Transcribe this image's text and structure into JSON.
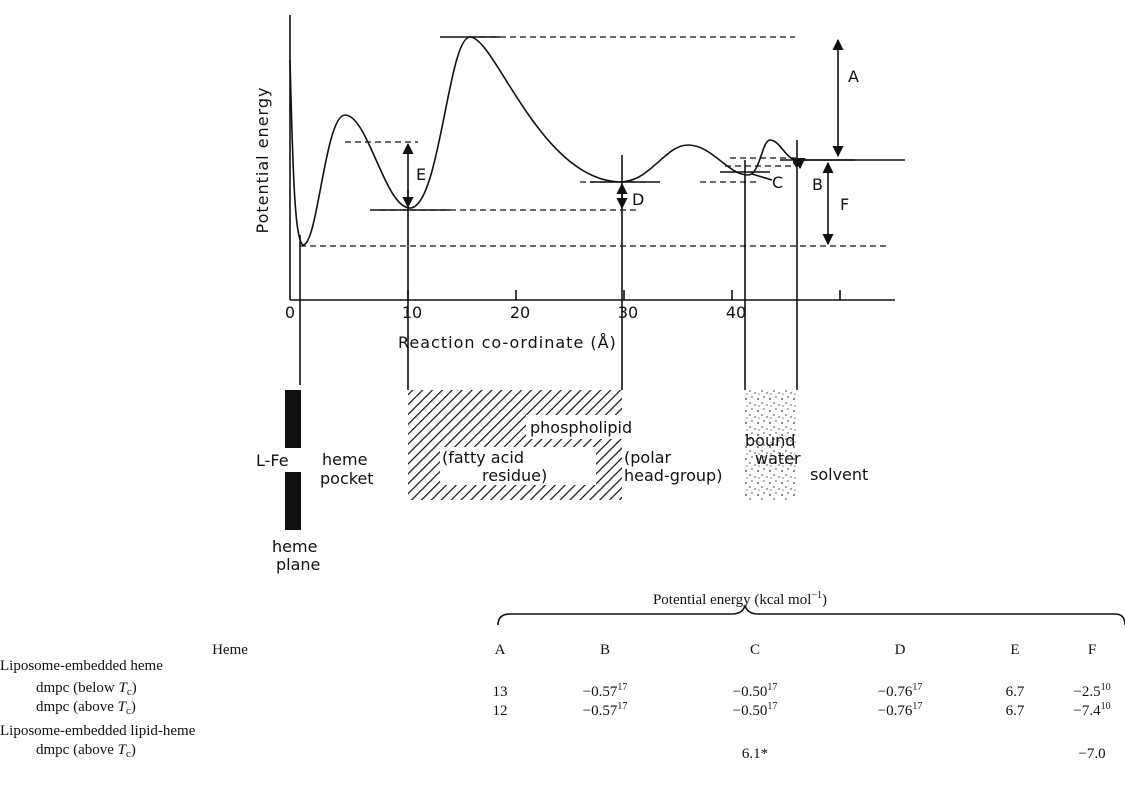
{
  "diagram": {
    "y_axis_label": "Potential energy",
    "x_axis_label": "Reaction co-ordinate (Å)",
    "x_ticks": [
      "0",
      "10",
      "20",
      "30",
      "40"
    ],
    "barrier_labels": [
      "A",
      "B",
      "C",
      "D",
      "E",
      "F"
    ],
    "regions": {
      "l_fe": "L-Fe",
      "heme_plane": [
        "heme",
        "plane"
      ],
      "heme_pocket": [
        "heme",
        "pocket"
      ],
      "phospholipid": "phospholipid",
      "fatty_acid": [
        "(fatty acid",
        "residue)"
      ],
      "polar_head": [
        "(polar",
        "head-group)"
      ],
      "bound_water": [
        "bound",
        "water"
      ],
      "solvent": "solvent"
    }
  },
  "table": {
    "title": {
      "text": "Potential energy (kcal mol",
      "sup": "−1",
      "end": ")"
    },
    "header": [
      "Heme",
      "A",
      "B",
      "C",
      "D",
      "E",
      "F"
    ],
    "groups": [
      {
        "label": "Liposome-embedded heme",
        "rows": [
          {
            "label": {
              "pre": "dmpc (below ",
              "var": "T",
              "sub": "c",
              "post": ")"
            },
            "cells": [
              {
                "value": "13"
              },
              {
                "value": "−0.57",
                "ref": "17"
              },
              {
                "value": "−0.50",
                "ref": "17"
              },
              {
                "value": "−0.76",
                "ref": "17"
              },
              {
                "value": "6.7"
              },
              {
                "value": "−2.5",
                "ref": "10"
              }
            ]
          },
          {
            "label": {
              "pre": "dmpc (above ",
              "var": "T",
              "sub": "c",
              "post": ")"
            },
            "cells": [
              {
                "value": "12"
              },
              {
                "value": "−0.57",
                "ref": "17"
              },
              {
                "value": "−0.50",
                "ref": "17"
              },
              {
                "value": "−0.76",
                "ref": "17"
              },
              {
                "value": "6.7"
              },
              {
                "value": "−7.4",
                "ref": "10"
              }
            ]
          }
        ]
      },
      {
        "label": "Liposome-embedded lipid-heme",
        "rows": [
          {
            "label": {
              "pre": "dmpc (above ",
              "var": "T",
              "sub": "c",
              "post": ")"
            },
            "cells": [
              null,
              null,
              {
                "value": "6.1*"
              },
              null,
              null,
              {
                "value": "−7.0"
              }
            ]
          }
        ]
      }
    ]
  }
}
